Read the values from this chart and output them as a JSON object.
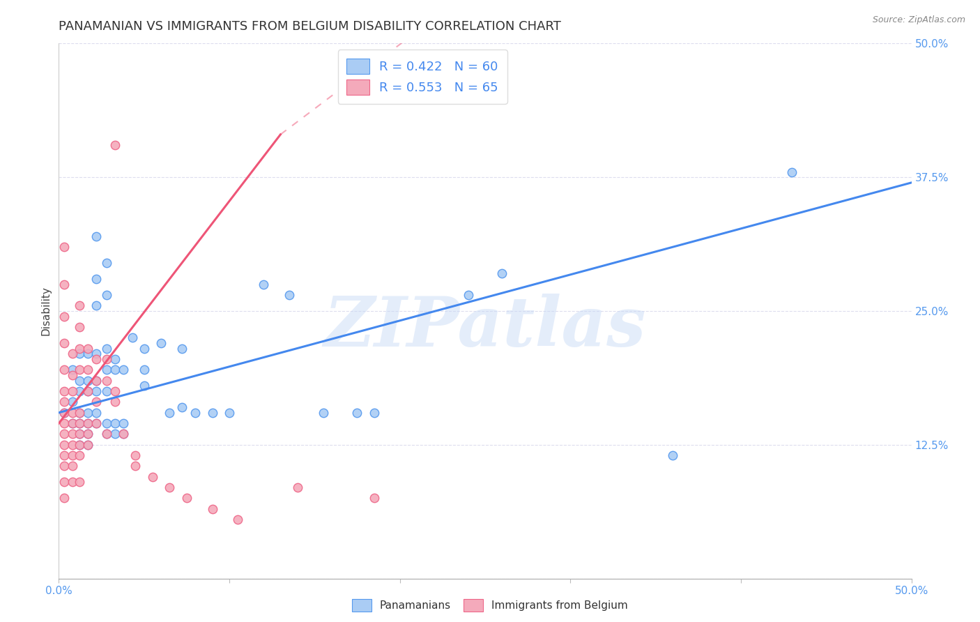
{
  "title": "PANAMANIAN VS IMMIGRANTS FROM BELGIUM DISABILITY CORRELATION CHART",
  "source": "Source: ZipAtlas.com",
  "ylabel": "Disability",
  "watermark": "ZIPatlas",
  "xlim": [
    0.0,
    0.5
  ],
  "ylim": [
    0.0,
    0.5
  ],
  "xtick_vals": [
    0.0,
    0.1,
    0.2,
    0.3,
    0.4,
    0.5
  ],
  "ytick_vals": [
    0.0,
    0.125,
    0.25,
    0.375,
    0.5
  ],
  "xtick_labels": [
    "0.0%",
    "",
    "",
    "",
    "",
    "50.0%"
  ],
  "ytick_labels": [
    "",
    "12.5%",
    "25.0%",
    "37.5%",
    "50.0%"
  ],
  "blue_color": "#aaccf4",
  "pink_color": "#f4aabb",
  "blue_edge_color": "#5599ee",
  "pink_edge_color": "#ee6688",
  "blue_line_color": "#4488ee",
  "pink_line_color": "#ee5577",
  "tick_label_color": "#5599ee",
  "blue_scatter": [
    [
      0.003,
      0.155
    ],
    [
      0.008,
      0.195
    ],
    [
      0.008,
      0.165
    ],
    [
      0.008,
      0.145
    ],
    [
      0.012,
      0.21
    ],
    [
      0.012,
      0.185
    ],
    [
      0.012,
      0.175
    ],
    [
      0.012,
      0.155
    ],
    [
      0.012,
      0.145
    ],
    [
      0.012,
      0.135
    ],
    [
      0.012,
      0.125
    ],
    [
      0.017,
      0.21
    ],
    [
      0.017,
      0.185
    ],
    [
      0.017,
      0.175
    ],
    [
      0.017,
      0.155
    ],
    [
      0.017,
      0.145
    ],
    [
      0.017,
      0.135
    ],
    [
      0.017,
      0.125
    ],
    [
      0.022,
      0.32
    ],
    [
      0.022,
      0.28
    ],
    [
      0.022,
      0.255
    ],
    [
      0.022,
      0.21
    ],
    [
      0.022,
      0.185
    ],
    [
      0.022,
      0.175
    ],
    [
      0.022,
      0.155
    ],
    [
      0.022,
      0.145
    ],
    [
      0.028,
      0.295
    ],
    [
      0.028,
      0.265
    ],
    [
      0.028,
      0.215
    ],
    [
      0.028,
      0.195
    ],
    [
      0.028,
      0.175
    ],
    [
      0.028,
      0.145
    ],
    [
      0.028,
      0.135
    ],
    [
      0.033,
      0.205
    ],
    [
      0.033,
      0.195
    ],
    [
      0.033,
      0.145
    ],
    [
      0.033,
      0.135
    ],
    [
      0.038,
      0.195
    ],
    [
      0.038,
      0.145
    ],
    [
      0.038,
      0.135
    ],
    [
      0.043,
      0.225
    ],
    [
      0.05,
      0.215
    ],
    [
      0.05,
      0.195
    ],
    [
      0.05,
      0.18
    ],
    [
      0.06,
      0.22
    ],
    [
      0.065,
      0.155
    ],
    [
      0.072,
      0.215
    ],
    [
      0.072,
      0.16
    ],
    [
      0.08,
      0.155
    ],
    [
      0.09,
      0.155
    ],
    [
      0.1,
      0.155
    ],
    [
      0.12,
      0.275
    ],
    [
      0.135,
      0.265
    ],
    [
      0.155,
      0.155
    ],
    [
      0.175,
      0.155
    ],
    [
      0.185,
      0.155
    ],
    [
      0.24,
      0.265
    ],
    [
      0.26,
      0.285
    ],
    [
      0.36,
      0.115
    ],
    [
      0.43,
      0.38
    ]
  ],
  "pink_scatter": [
    [
      0.003,
      0.31
    ],
    [
      0.003,
      0.275
    ],
    [
      0.003,
      0.245
    ],
    [
      0.003,
      0.22
    ],
    [
      0.003,
      0.195
    ],
    [
      0.003,
      0.175
    ],
    [
      0.003,
      0.165
    ],
    [
      0.003,
      0.155
    ],
    [
      0.003,
      0.145
    ],
    [
      0.003,
      0.135
    ],
    [
      0.003,
      0.125
    ],
    [
      0.003,
      0.115
    ],
    [
      0.003,
      0.105
    ],
    [
      0.003,
      0.09
    ],
    [
      0.003,
      0.075
    ],
    [
      0.008,
      0.21
    ],
    [
      0.008,
      0.19
    ],
    [
      0.008,
      0.175
    ],
    [
      0.008,
      0.155
    ],
    [
      0.008,
      0.145
    ],
    [
      0.008,
      0.135
    ],
    [
      0.008,
      0.125
    ],
    [
      0.008,
      0.115
    ],
    [
      0.008,
      0.105
    ],
    [
      0.008,
      0.09
    ],
    [
      0.012,
      0.255
    ],
    [
      0.012,
      0.235
    ],
    [
      0.012,
      0.215
    ],
    [
      0.012,
      0.195
    ],
    [
      0.012,
      0.155
    ],
    [
      0.012,
      0.145
    ],
    [
      0.012,
      0.135
    ],
    [
      0.012,
      0.125
    ],
    [
      0.012,
      0.115
    ],
    [
      0.012,
      0.09
    ],
    [
      0.017,
      0.215
    ],
    [
      0.017,
      0.195
    ],
    [
      0.017,
      0.175
    ],
    [
      0.017,
      0.145
    ],
    [
      0.017,
      0.135
    ],
    [
      0.017,
      0.125
    ],
    [
      0.022,
      0.205
    ],
    [
      0.022,
      0.185
    ],
    [
      0.022,
      0.165
    ],
    [
      0.022,
      0.145
    ],
    [
      0.028,
      0.205
    ],
    [
      0.028,
      0.185
    ],
    [
      0.028,
      0.135
    ],
    [
      0.033,
      0.405
    ],
    [
      0.033,
      0.175
    ],
    [
      0.033,
      0.165
    ],
    [
      0.038,
      0.135
    ],
    [
      0.045,
      0.115
    ],
    [
      0.045,
      0.105
    ],
    [
      0.055,
      0.095
    ],
    [
      0.065,
      0.085
    ],
    [
      0.075,
      0.075
    ],
    [
      0.09,
      0.065
    ],
    [
      0.105,
      0.055
    ],
    [
      0.14,
      0.085
    ],
    [
      0.185,
      0.075
    ]
  ],
  "blue_trendline_solid": [
    [
      0.0,
      0.155
    ],
    [
      0.5,
      0.37
    ]
  ],
  "pink_trendline_solid": [
    [
      0.0,
      0.145
    ],
    [
      0.13,
      0.415
    ]
  ],
  "pink_trendline_dashed": [
    [
      0.13,
      0.415
    ],
    [
      0.45,
      0.8
    ]
  ],
  "background_color": "#ffffff",
  "grid_color": "#ddddee",
  "title_fontsize": 13,
  "axis_label_fontsize": 11,
  "tick_fontsize": 11,
  "watermark_fontsize": 72,
  "watermark_color": "#c5d8f5",
  "watermark_alpha": 0.45,
  "scatter_size": 80,
  "scatter_linewidth": 1.0
}
